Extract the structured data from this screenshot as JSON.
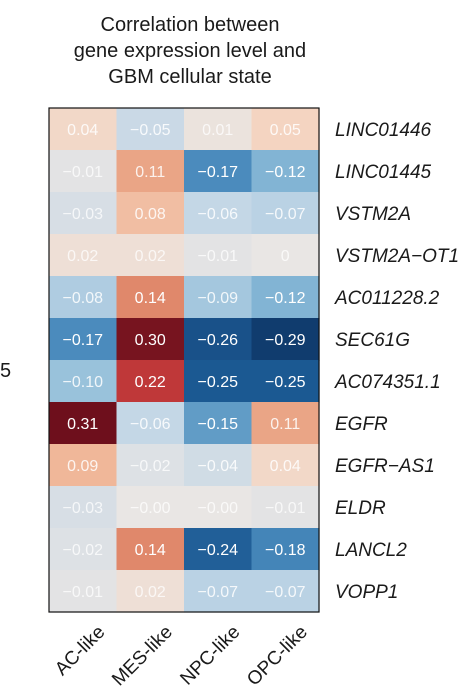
{
  "chart_data": {
    "type": "heatmap",
    "title_lines": [
      "Correlation between",
      "gene expression level and",
      "GBM cellular state"
    ],
    "columns": [
      "AC-like",
      "MES-like",
      "NPC-like",
      "OPC-like"
    ],
    "rows": [
      "LINC01446",
      "LINC01445",
      "VSTM2A",
      "VSTM2A−OT1",
      "AC011228.2",
      "SEC61G",
      "AC074351.1",
      "EGFR",
      "EGFR−AS1",
      "ELDR",
      "LANCL2",
      "VOPP1"
    ],
    "values": [
      [
        0.04,
        -0.05,
        0.01,
        0.05
      ],
      [
        -0.01,
        0.11,
        -0.17,
        -0.12
      ],
      [
        -0.03,
        0.08,
        -0.06,
        -0.07
      ],
      [
        0.02,
        0.02,
        -0.01,
        0
      ],
      [
        -0.08,
        0.14,
        -0.09,
        -0.12
      ],
      [
        -0.17,
        0.3,
        -0.26,
        -0.29
      ],
      [
        -0.1,
        0.22,
        -0.25,
        -0.25
      ],
      [
        0.31,
        -0.06,
        -0.15,
        0.11
      ],
      [
        0.09,
        -0.02,
        -0.04,
        0.04
      ],
      [
        -0.03,
        -0.0,
        -0.0,
        -0.01
      ],
      [
        -0.02,
        0.14,
        -0.24,
        -0.18
      ],
      [
        -0.01,
        0.02,
        -0.07,
        -0.07
      ]
    ],
    "labels": [
      [
        "0.04",
        "−0.05",
        "0.01",
        "0.05"
      ],
      [
        "−0.01",
        "0.11",
        "−0.17",
        "−0.12"
      ],
      [
        "−0.03",
        "0.08",
        "−0.06",
        "−0.07"
      ],
      [
        "0.02",
        "0.02",
        "−0.01",
        "0"
      ],
      [
        "−0.08",
        "0.14",
        "−0.09",
        "−0.12"
      ],
      [
        "−0.17",
        "0.30",
        "−0.26",
        "−0.29"
      ],
      [
        "−0.10",
        "0.22",
        "−0.25",
        "−0.25"
      ],
      [
        "0.31",
        "−0.06",
        "−0.15",
        "0.11"
      ],
      [
        "0.09",
        "−0.02",
        "−0.04",
        "0.04"
      ],
      [
        "−0.03",
        "−0.00",
        "−0.00",
        "−0.01"
      ],
      [
        "−0.02",
        "0.14",
        "−0.24",
        "−0.18"
      ],
      [
        "−0.01",
        "0.02",
        "−0.07",
        "−0.07"
      ]
    ],
    "color_range": [
      -0.31,
      0.31
    ],
    "colormap": "RdBu_r",
    "colors": {
      "negative_max": "#0a2d5c",
      "neutral": "#e9e6e4",
      "positive_max": "#6e0f1c"
    },
    "stray_text": "5"
  }
}
